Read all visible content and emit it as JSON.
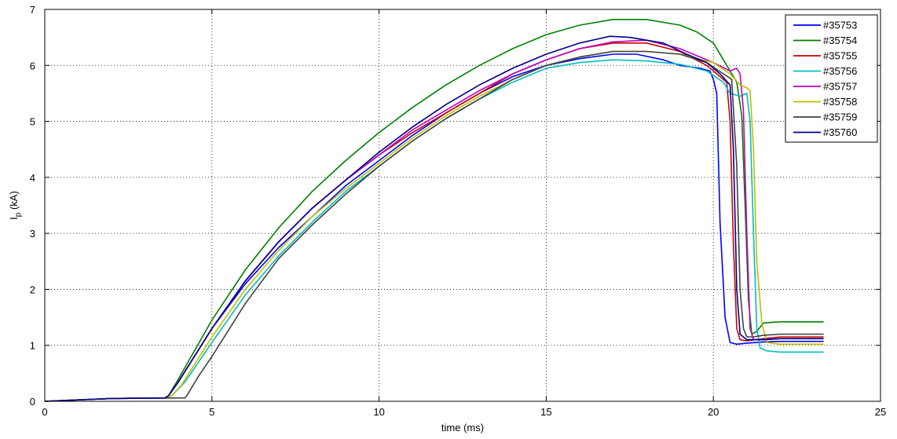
{
  "chart_data": {
    "type": "line",
    "xlabel": "time (ms)",
    "ylabel_main": "I",
    "ylabel_sub": "p",
    "ylabel_unit": " (kA)",
    "xlim": [
      0,
      25
    ],
    "ylim": [
      0,
      7
    ],
    "xticks": [
      0,
      5,
      10,
      15,
      20,
      25
    ],
    "yticks": [
      0,
      1,
      2,
      3,
      4,
      5,
      6,
      7
    ],
    "grid": true,
    "legend_position": "top-right",
    "series": [
      {
        "name": "#35753",
        "color": "#0000ff",
        "x": [
          0,
          2,
          3.6,
          3.7,
          4.0,
          5.0,
          6.0,
          7.0,
          8.0,
          9.0,
          10.0,
          11.0,
          12.0,
          13.0,
          14.0,
          15.0,
          16.0,
          17.0,
          17.7,
          18.5,
          19.0,
          19.6,
          19.9,
          20.0,
          20.1,
          20.2,
          20.35,
          20.5,
          20.7,
          21.0,
          21.5,
          22.0,
          23.3
        ],
        "y": [
          0,
          0.05,
          0.06,
          0.1,
          0.35,
          1.3,
          2.1,
          2.75,
          3.3,
          3.85,
          4.3,
          4.75,
          5.15,
          5.5,
          5.8,
          6.0,
          6.12,
          6.2,
          6.2,
          6.1,
          6.0,
          5.95,
          5.9,
          5.75,
          5.5,
          3.2,
          1.5,
          1.05,
          1.02,
          1.04,
          1.06,
          1.07,
          1.07
        ]
      },
      {
        "name": "#35754",
        "color": "#008000",
        "x": [
          0,
          2,
          3.6,
          3.7,
          4.0,
          5.0,
          6.0,
          7.0,
          8.0,
          9.0,
          10.0,
          11.0,
          12.0,
          13.0,
          14.0,
          15.0,
          16.0,
          17.0,
          18.0,
          19.0,
          19.5,
          20.0,
          20.3,
          20.5,
          20.7,
          20.85,
          20.95,
          21.05,
          21.15,
          21.3,
          21.5,
          22.0,
          23.3
        ],
        "y": [
          0,
          0.05,
          0.06,
          0.1,
          0.4,
          1.45,
          2.35,
          3.1,
          3.75,
          4.3,
          4.8,
          5.25,
          5.65,
          6.0,
          6.3,
          6.55,
          6.72,
          6.82,
          6.82,
          6.72,
          6.6,
          6.4,
          6.1,
          5.9,
          5.7,
          5.1,
          3.5,
          1.8,
          1.2,
          1.25,
          1.4,
          1.42,
          1.42
        ]
      },
      {
        "name": "#35755",
        "color": "#cc0000",
        "x": [
          0,
          2,
          3.6,
          3.7,
          4.0,
          5.0,
          6.0,
          7.0,
          8.0,
          9.0,
          10.0,
          11.0,
          12.0,
          13.0,
          14.0,
          15.0,
          16.0,
          17.0,
          18.0,
          19.0,
          19.8,
          20.2,
          20.4,
          20.5,
          20.6,
          20.7,
          20.8,
          21.0,
          21.5,
          22.0,
          23.3
        ],
        "y": [
          0,
          0.05,
          0.06,
          0.1,
          0.35,
          1.3,
          2.15,
          2.85,
          3.45,
          3.95,
          4.4,
          4.8,
          5.15,
          5.5,
          5.85,
          6.1,
          6.3,
          6.4,
          6.4,
          6.25,
          6.0,
          5.8,
          5.7,
          5.0,
          2.8,
          1.3,
          1.1,
          1.08,
          1.12,
          1.15,
          1.15
        ]
      },
      {
        "name": "#35756",
        "color": "#00bfbf",
        "x": [
          0,
          2,
          3.6,
          3.8,
          4.2,
          5.0,
          6.0,
          7.0,
          8.0,
          9.0,
          10.0,
          11.0,
          12.0,
          13.0,
          14.0,
          15.0,
          16.0,
          17.0,
          18.0,
          19.0,
          19.8,
          20.3,
          20.5,
          20.8,
          21.0,
          21.1,
          21.2,
          21.3,
          21.4,
          21.6,
          22.0,
          23.3
        ],
        "y": [
          0,
          0.05,
          0.06,
          0.1,
          0.35,
          1.05,
          1.9,
          2.6,
          3.2,
          3.75,
          4.2,
          4.65,
          5.05,
          5.4,
          5.7,
          5.95,
          6.05,
          6.1,
          6.08,
          6.02,
          5.9,
          5.7,
          5.5,
          5.45,
          5.5,
          5.0,
          3.0,
          1.3,
          0.95,
          0.9,
          0.88,
          0.88
        ]
      },
      {
        "name": "#35757",
        "color": "#bf00bf",
        "x": [
          0,
          2,
          3.6,
          3.7,
          4.0,
          5.0,
          6.0,
          7.0,
          8.0,
          9.0,
          10.0,
          11.0,
          12.0,
          13.0,
          14.0,
          15.0,
          16.0,
          17.0,
          18.0,
          19.0,
          20.0,
          20.5,
          20.7,
          20.8,
          20.9,
          21.0,
          21.1,
          21.2,
          21.5,
          22.0,
          23.3
        ],
        "y": [
          0,
          0.05,
          0.06,
          0.1,
          0.35,
          1.3,
          2.15,
          2.85,
          3.45,
          3.95,
          4.4,
          4.85,
          5.2,
          5.55,
          5.85,
          6.1,
          6.3,
          6.42,
          6.45,
          6.3,
          6.05,
          5.9,
          5.95,
          5.85,
          5.2,
          3.0,
          1.3,
          1.1,
          1.1,
          1.12,
          1.12
        ]
      },
      {
        "name": "#35758",
        "color": "#bfbf00",
        "x": [
          0,
          2,
          3.6,
          3.8,
          4.1,
          5.0,
          6.0,
          7.0,
          8.0,
          9.0,
          10.0,
          11.0,
          12.0,
          13.0,
          14.0,
          15.0,
          16.0,
          17.0,
          18.0,
          19.0,
          20.0,
          20.5,
          20.8,
          21.0,
          21.1,
          21.2,
          21.3,
          21.45,
          21.6,
          22.0,
          23.3
        ],
        "y": [
          0,
          0.05,
          0.06,
          0.1,
          0.3,
          1.15,
          2.0,
          2.7,
          3.3,
          3.8,
          4.25,
          4.7,
          5.1,
          5.45,
          5.75,
          6.0,
          6.15,
          6.25,
          6.25,
          6.2,
          6.05,
          5.85,
          5.65,
          5.6,
          5.55,
          4.5,
          2.5,
          1.4,
          1.05,
          1.02,
          1.02
        ]
      },
      {
        "name": "#35759",
        "color": "#404040",
        "x": [
          0,
          2,
          4.2,
          4.3,
          4.6,
          5.0,
          6.0,
          7.0,
          8.0,
          9.0,
          10.0,
          11.0,
          12.0,
          13.0,
          14.0,
          15.0,
          16.0,
          17.0,
          18.0,
          19.0,
          19.8,
          20.3,
          20.55,
          20.7,
          20.8,
          20.9,
          21.0,
          21.2,
          21.5,
          22.0,
          23.3
        ],
        "y": [
          0,
          0.05,
          0.06,
          0.15,
          0.45,
          0.8,
          1.75,
          2.55,
          3.15,
          3.7,
          4.2,
          4.65,
          5.05,
          5.4,
          5.75,
          6.0,
          6.15,
          6.25,
          6.25,
          6.2,
          6.05,
          5.85,
          5.75,
          4.2,
          2.0,
          1.3,
          1.15,
          1.15,
          1.18,
          1.2,
          1.2
        ]
      },
      {
        "name": "#35760",
        "color": "#00008b",
        "x": [
          0,
          2,
          3.6,
          3.7,
          4.0,
          5.0,
          6.0,
          7.0,
          8.0,
          9.0,
          10.0,
          11.0,
          12.0,
          13.0,
          14.0,
          15.0,
          16.0,
          16.9,
          17.5,
          18.5,
          19.2,
          19.8,
          20.2,
          20.5,
          20.6,
          20.7,
          20.8,
          21.0,
          21.5,
          22.0,
          23.3
        ],
        "y": [
          0,
          0.05,
          0.06,
          0.1,
          0.35,
          1.3,
          2.15,
          2.85,
          3.45,
          3.95,
          4.45,
          4.9,
          5.3,
          5.65,
          5.95,
          6.2,
          6.4,
          6.52,
          6.5,
          6.4,
          6.2,
          6.05,
          5.85,
          5.65,
          4.5,
          2.0,
          1.2,
          1.1,
          1.1,
          1.12,
          1.12
        ]
      }
    ]
  }
}
